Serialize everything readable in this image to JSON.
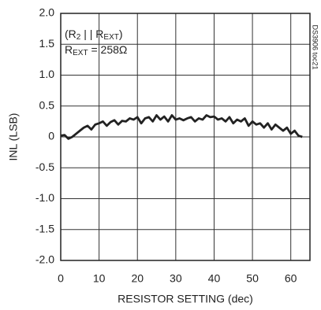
{
  "chart_data": {
    "type": "line",
    "xlabel": "RESISTOR SETTING (dec)",
    "ylabel": "INL (LSB)",
    "annotation_line1": [
      "(R",
      "2",
      " | | R",
      "EXT",
      ")"
    ],
    "annotation_line2": [
      "R",
      "EXT",
      " = 258Ω"
    ],
    "side_note": "DS3906 toc21",
    "x": [
      0,
      1,
      2,
      3,
      4,
      5,
      6,
      7,
      8,
      9,
      10,
      11,
      12,
      13,
      14,
      15,
      16,
      17,
      18,
      19,
      20,
      21,
      22,
      23,
      24,
      25,
      26,
      27,
      28,
      29,
      30,
      31,
      32,
      33,
      34,
      35,
      36,
      37,
      38,
      39,
      40,
      41,
      42,
      43,
      44,
      45,
      46,
      47,
      48,
      49,
      50,
      51,
      52,
      53,
      54,
      55,
      56,
      57,
      58,
      59,
      60,
      61,
      62,
      63
    ],
    "series": [
      {
        "color": "#222222",
        "values": [
          0.02,
          0.03,
          -0.03,
          0.0,
          0.05,
          0.1,
          0.15,
          0.18,
          0.12,
          0.2,
          0.22,
          0.25,
          0.18,
          0.24,
          0.27,
          0.2,
          0.26,
          0.25,
          0.3,
          0.28,
          0.32,
          0.22,
          0.3,
          0.32,
          0.25,
          0.35,
          0.28,
          0.33,
          0.25,
          0.35,
          0.28,
          0.3,
          0.27,
          0.3,
          0.32,
          0.25,
          0.3,
          0.28,
          0.35,
          0.32,
          0.33,
          0.28,
          0.3,
          0.25,
          0.32,
          0.22,
          0.28,
          0.25,
          0.3,
          0.18,
          0.25,
          0.2,
          0.22,
          0.15,
          0.22,
          0.12,
          0.2,
          0.15,
          0.1,
          0.15,
          0.05,
          0.1,
          0.02,
          0.0
        ]
      }
    ],
    "xlim": [
      0,
      65
    ],
    "xticks": [
      0,
      10,
      20,
      30,
      40,
      50,
      60
    ],
    "ylim": [
      -2,
      2
    ],
    "yticks": [
      {
        "value": 2,
        "label": "2.0"
      },
      1.5,
      {
        "value": 1,
        "label": "1.0"
      },
      0.5,
      0,
      -0.5,
      {
        "value": -1,
        "label": "-1.0"
      },
      -1.5,
      {
        "value": -2,
        "label": "-2.0"
      }
    ],
    "grid": true
  }
}
